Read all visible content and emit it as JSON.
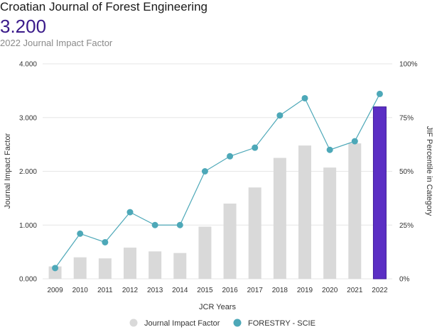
{
  "header": {
    "title": "Croatian Journal of Forest Engineering",
    "value": "3.200",
    "subtitle": "2022 Journal Impact Factor"
  },
  "chart_data": {
    "type": "bar",
    "categories": [
      "2009",
      "2010",
      "2011",
      "2012",
      "2013",
      "2014",
      "2015",
      "2016",
      "2017",
      "2018",
      "2019",
      "2020",
      "2021",
      "2022"
    ],
    "series": [
      {
        "name": "Journal Impact Factor",
        "kind": "bar",
        "axis": "left",
        "color": "#d9d9d9",
        "highlight_color": "#5b2ec4",
        "highlight_index": 13,
        "values": [
          0.23,
          0.4,
          0.38,
          0.58,
          0.51,
          0.48,
          0.97,
          1.4,
          1.7,
          2.25,
          2.48,
          2.07,
          2.52,
          3.2
        ]
      },
      {
        "name": "FORESTRY - SCIE",
        "kind": "line",
        "axis": "right",
        "color": "#4da8b8",
        "values": [
          5,
          21,
          17,
          31,
          25,
          25,
          50,
          57,
          61,
          76,
          84,
          60,
          64,
          86
        ]
      }
    ],
    "xlabel": "JCR Years",
    "ylabel": "Journal Impact Factor",
    "ylabel_right": "JIF Percentile in Category",
    "ylim": [
      0,
      4
    ],
    "ylim_right": [
      0,
      100
    ],
    "yticks": [
      "0.000",
      "1.000",
      "2.000",
      "3.000",
      "4.000"
    ],
    "yticks_right": [
      "0%",
      "25%",
      "50%",
      "75%",
      "100%"
    ],
    "grid": true,
    "legend_position": "bottom-center"
  }
}
